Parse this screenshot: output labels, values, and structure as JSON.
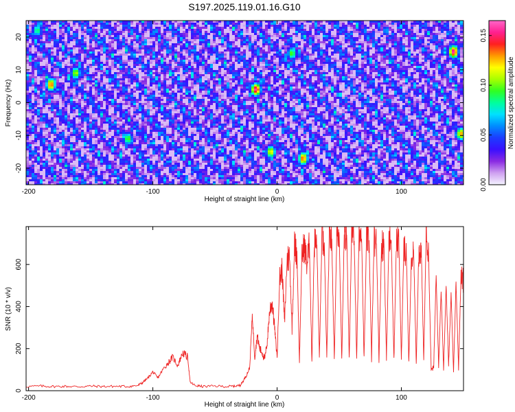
{
  "title": "S197.2025.119.01.16.G10",
  "chart_data": [
    {
      "type": "heatmap",
      "xlabel": "Height of straight line (km)",
      "ylabel": "Frequency (Hz)",
      "xlim": [
        -202,
        150
      ],
      "ylim": [
        -25,
        25
      ],
      "xticks": [
        -200,
        -100,
        0,
        100
      ],
      "yticks": [
        -20,
        -10,
        0,
        10,
        20
      ],
      "colorbar": {
        "label": "Normalized spectral amplitude",
        "range": [
          0.0,
          0.165
        ],
        "ticks": [
          0.0,
          0.05,
          0.1,
          0.15
        ],
        "tick_labels": [
          "0.00",
          "0.05",
          "0.10",
          "0.15"
        ],
        "colors": [
          "#f4f4ff",
          "#cfa0f0",
          "#8a2be2",
          "#3a10ff",
          "#1c3cff",
          "#008cff",
          "#00e0ff",
          "#00ff9c",
          "#30ff20",
          "#a8ff00",
          "#ffff00",
          "#ff9800",
          "#ff2020",
          "#ff2090",
          "#ff66c8"
        ]
      },
      "hotspots": [
        {
          "x": -182,
          "y": 5.5,
          "v": 0.14
        },
        {
          "x": -162,
          "y": 9,
          "v": 0.11
        },
        {
          "x": -120,
          "y": -11,
          "v": 0.1
        },
        {
          "x": -17,
          "y": 4,
          "v": 0.16
        },
        {
          "x": -5,
          "y": -15,
          "v": 0.12
        },
        {
          "x": 21,
          "y": -17,
          "v": 0.14
        },
        {
          "x": 142,
          "y": 15.5,
          "v": 0.16
        },
        {
          "x": 148,
          "y": -9.5,
          "v": 0.13
        },
        {
          "x": 12,
          "y": 15,
          "v": 0.1
        },
        {
          "x": -193,
          "y": 22,
          "v": 0.09
        }
      ]
    },
    {
      "type": "line",
      "xlabel": "Height of straight line (km)",
      "ylabel": "SNR (10 * v/v)",
      "xlim": [
        -202,
        150
      ],
      "ylim": [
        0,
        780
      ],
      "xticks": [
        -200,
        -100,
        0,
        100
      ],
      "yticks": [
        0,
        200,
        400,
        600
      ],
      "color": "#ee2222",
      "series": [
        {
          "x": [
            -202,
            -190,
            -180,
            -170,
            -160,
            -150,
            -140,
            -130,
            -120,
            -112,
            -108,
            -104,
            -100,
            -96,
            -92,
            -88,
            -84,
            -80,
            -76,
            -72,
            -70,
            -66,
            -60,
            -50,
            -40,
            -35,
            -30,
            -28,
            -25,
            -22,
            -20,
            -18,
            -16,
            -14,
            -12,
            -10,
            -8,
            -6,
            -4,
            -2,
            0,
            2,
            4,
            6,
            8,
            10,
            12,
            14,
            16,
            18,
            20,
            22,
            24,
            26,
            28,
            30,
            32,
            34,
            36,
            38,
            40,
            42,
            44,
            46,
            48,
            50,
            52,
            54,
            56,
            58,
            60,
            62,
            64,
            66,
            68,
            70,
            72,
            74,
            76,
            78,
            80,
            82,
            84,
            86,
            88,
            90,
            92,
            94,
            96,
            98,
            100,
            102,
            104,
            106,
            108,
            110,
            112,
            114,
            116,
            118,
            120,
            122,
            124,
            126,
            128,
            130,
            132,
            134,
            136,
            138,
            140,
            142,
            144,
            146,
            148,
            150
          ],
          "y": [
            20,
            22,
            20,
            21,
            19,
            22,
            20,
            21,
            20,
            25,
            40,
            60,
            90,
            60,
            100,
            130,
            160,
            120,
            180,
            160,
            40,
            25,
            20,
            22,
            20,
            22,
            25,
            40,
            70,
            110,
            360,
            160,
            260,
            200,
            180,
            150,
            230,
            380,
            420,
            300,
            160,
            530,
            580,
            320,
            620,
            640,
            300,
            690,
            650,
            140,
            650,
            690,
            600,
            700,
            140,
            710,
            690,
            150,
            720,
            700,
            150,
            740,
            710,
            150,
            730,
            750,
            150,
            740,
            750,
            150,
            740,
            720,
            155,
            750,
            740,
            150,
            730,
            720,
            150,
            710,
            700,
            150,
            690,
            700,
            150,
            720,
            690,
            150,
            710,
            700,
            150,
            680,
            650,
            130,
            620,
            640,
            130,
            660,
            680,
            140,
            760,
            620,
            100,
            110,
            560,
            120,
            480,
            100,
            500,
            120,
            470,
            90,
            520,
            100,
            560,
            520
          ]
        }
      ]
    }
  ]
}
